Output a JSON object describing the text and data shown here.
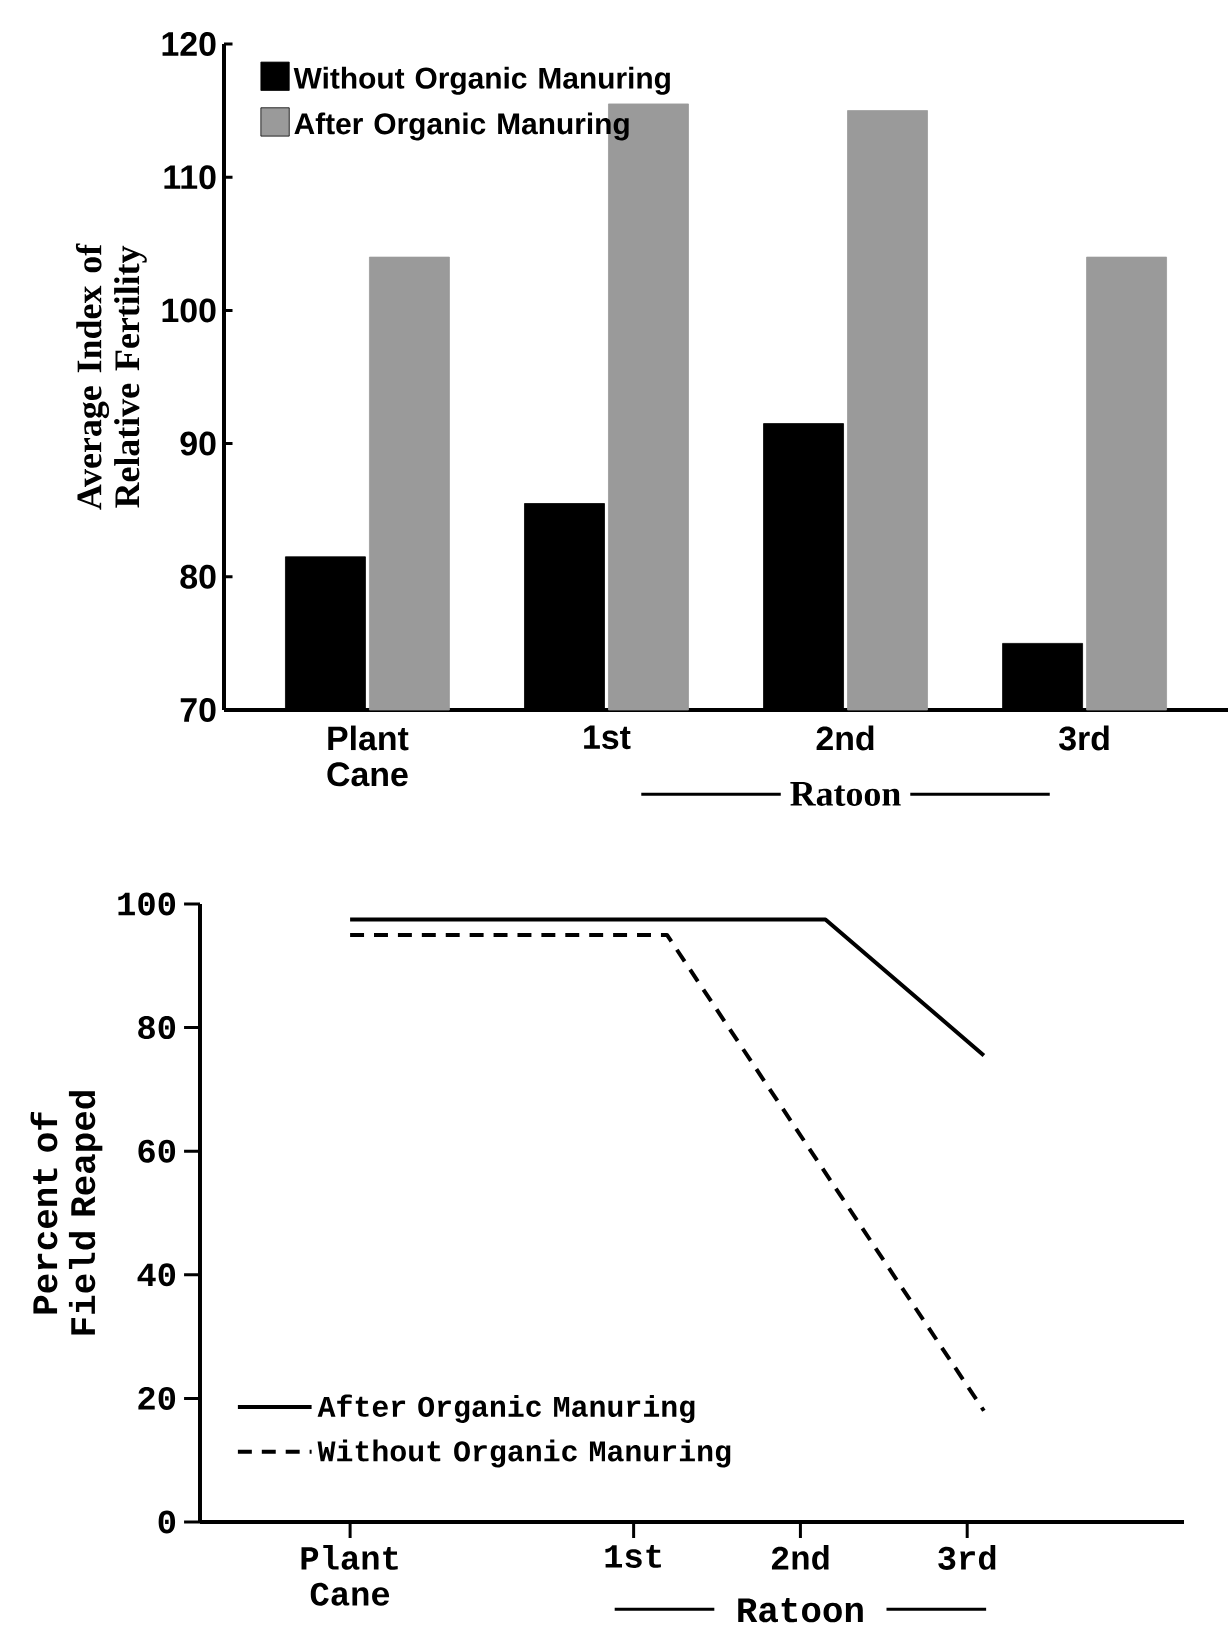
{
  "chart_data": [
    {
      "type": "bar",
      "ylabel": "Average Index of Relative Fertility",
      "categories": [
        "Plant Cane",
        "1st",
        "2nd",
        "3rd"
      ],
      "series": [
        {
          "name": "Without Organic Manuring",
          "color": "#000000",
          "values": [
            81.5,
            85.5,
            91.5,
            75
          ]
        },
        {
          "name": "After Organic Manuring",
          "color": "#9a9a9a",
          "values": [
            104,
            115.5,
            115,
            104
          ]
        }
      ],
      "ylim": [
        70,
        120
      ],
      "yticks": [
        70,
        80,
        90,
        100,
        110,
        120
      ],
      "legend": "top left",
      "grid": false,
      "annotations": [
        "Ratoon"
      ]
    },
    {
      "type": "line",
      "ylabel": "Percent of Field Reaped",
      "series": [
        {
          "name": "After Organic Manuring",
          "color": "#000000",
          "line_style": "solid",
          "x": [
            -0.7,
            2.15,
            3.1
          ],
          "values": [
            97.5,
            97.5,
            75.5
          ]
        },
        {
          "name": "Without Organic Manuring",
          "color": "#000000",
          "line_style": "dashed",
          "x": [
            -0.7,
            1.2,
            3.1
          ],
          "values": [
            95,
            95,
            18
          ]
        }
      ],
      "xlim": [
        -1.6,
        4.3
      ],
      "xticks": [
        {
          "value": -0.7,
          "label": "Plant Cane"
        },
        {
          "value": 1,
          "label": "1st"
        },
        {
          "value": 2,
          "label": "2nd"
        },
        {
          "value": 3,
          "label": "3rd"
        }
      ],
      "ylim": [
        0,
        100
      ],
      "yticks": [
        0,
        20,
        40,
        60,
        80,
        100
      ],
      "legend": "bottom left",
      "grid": false,
      "marker": "none",
      "annotations": [
        "Ratoon"
      ]
    }
  ]
}
